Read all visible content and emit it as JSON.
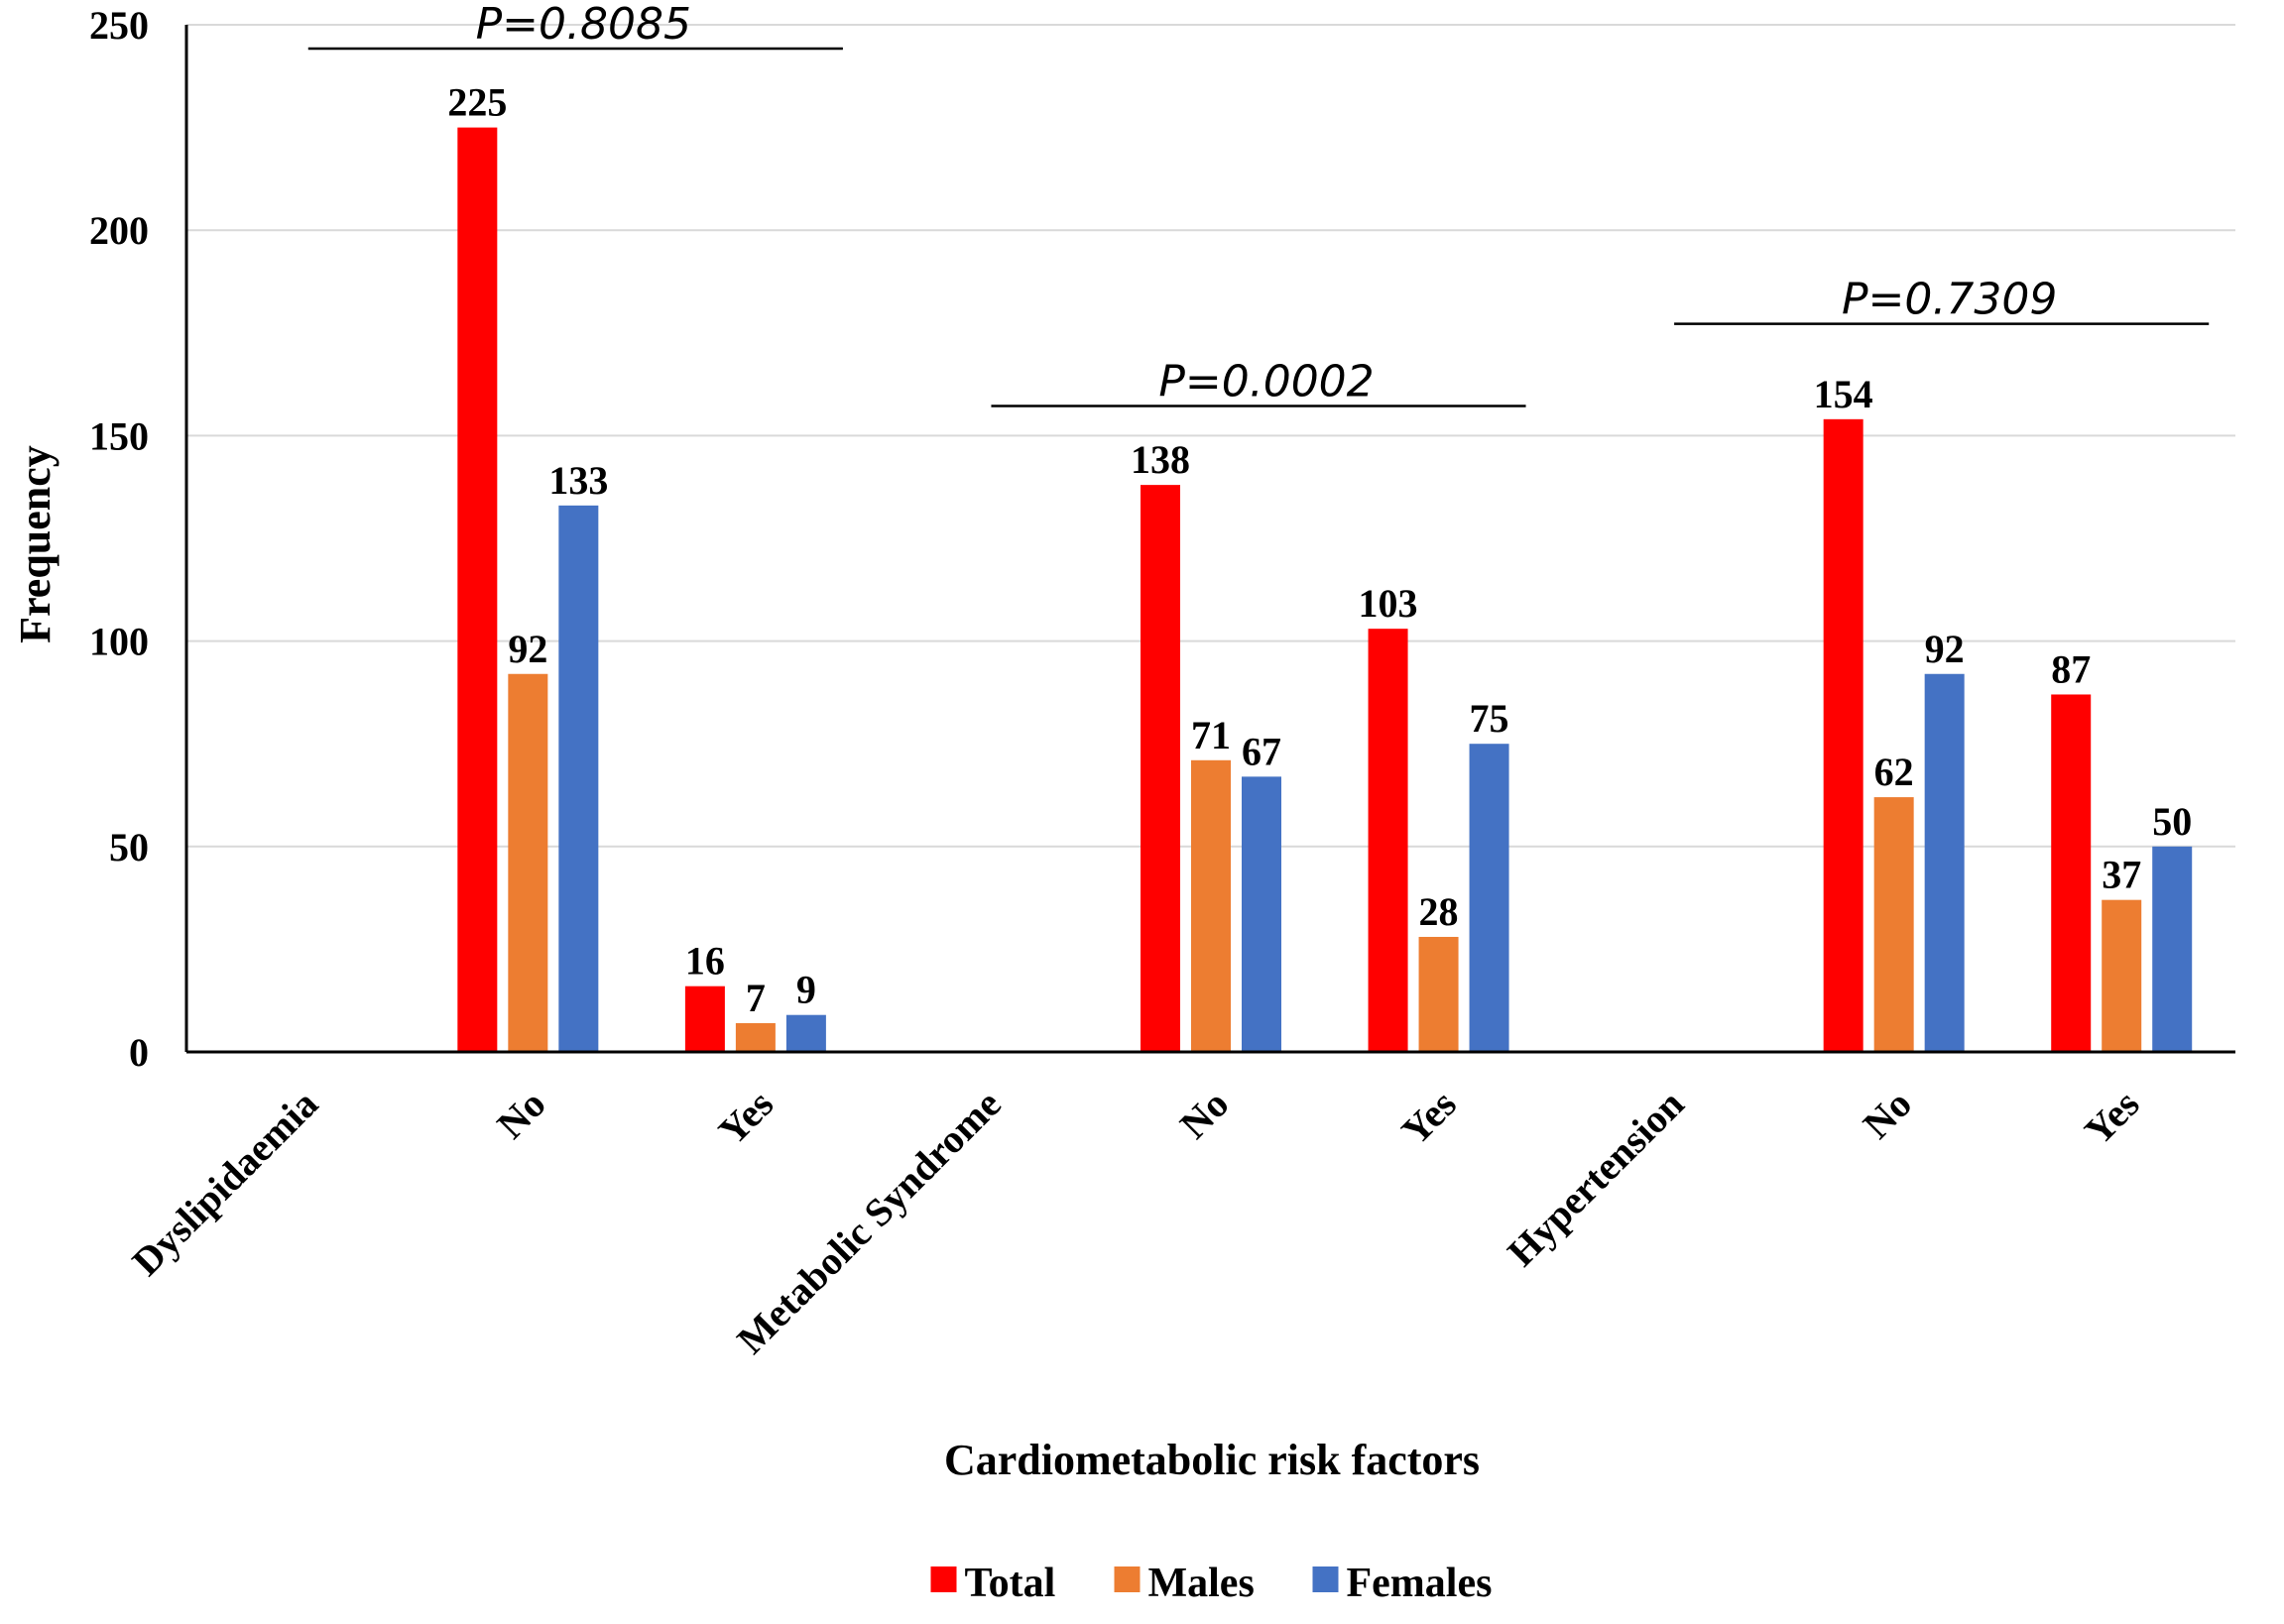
{
  "chart_data": {
    "type": "bar",
    "title": "",
    "xlabel": "Cardiometabolic risk factors",
    "ylabel": "Frequency",
    "ylim": [
      0,
      250
    ],
    "yticks": [
      0,
      50,
      100,
      150,
      200,
      250
    ],
    "grid": true,
    "legend_position": "bottom-center",
    "categories": [
      "Dyslipidaemia",
      "No",
      "Yes",
      "Metabolic Syndrome",
      "No",
      "Yes",
      "Hypertension",
      "No",
      "Yes"
    ],
    "series": [
      {
        "name": "Total",
        "color": "#ff0000",
        "values": [
          null,
          225,
          16,
          null,
          138,
          103,
          null,
          154,
          87
        ]
      },
      {
        "name": "Males",
        "color": "#ed7d31",
        "values": [
          null,
          92,
          7,
          null,
          71,
          28,
          null,
          62,
          37
        ]
      },
      {
        "name": "Females",
        "color": "#4472c4",
        "values": [
          null,
          133,
          9,
          null,
          67,
          75,
          null,
          92,
          50
        ]
      }
    ],
    "annotations": [
      {
        "text": "P=0.8085",
        "group": "Dyslipidaemia",
        "value": 250
      },
      {
        "text": "P=0.0002",
        "group": "Metabolic Syndrome",
        "value": 163
      },
      {
        "text": "P=0.7309",
        "group": "Hypertension",
        "value": 183
      }
    ]
  }
}
